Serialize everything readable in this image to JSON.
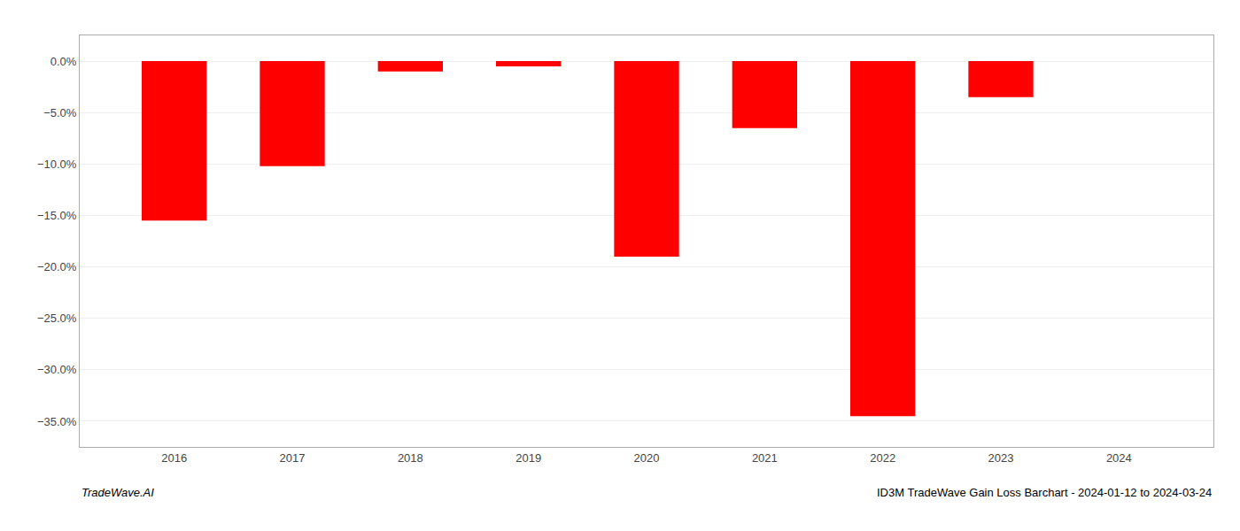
{
  "chart_data": {
    "type": "bar",
    "x": [
      2016,
      2017,
      2018,
      2019,
      2020,
      2021,
      2022,
      2023,
      2024
    ],
    "values": [
      -15.5,
      -10.2,
      -1.0,
      -0.5,
      -19.0,
      -6.5,
      -34.5,
      -3.5,
      0.0
    ],
    "color": "#FF0000",
    "xlim": [
      2015.2,
      2024.8
    ],
    "xticks": [
      2016,
      2017,
      2018,
      2019,
      2020,
      2021,
      2022,
      2023,
      2024
    ],
    "ylim": [
      -37.5,
      2.5
    ],
    "yticks": [
      {
        "value": 0.0,
        "label": "0.0%"
      },
      {
        "value": -5.0,
        "label": "−5.0%"
      },
      {
        "value": -10.0,
        "label": "−10.0%"
      },
      {
        "value": -15.0,
        "label": "−15.0%"
      },
      {
        "value": -20.0,
        "label": "−20.0%"
      },
      {
        "value": -25.0,
        "label": "−25.0%"
      },
      {
        "value": -30.0,
        "label": "−30.0%"
      },
      {
        "value": -35.0,
        "label": "−35.0%"
      }
    ],
    "grid": true,
    "annotations": [
      "TradeWave.AI",
      "ID3M TradeWave Gain Loss Barchart - 2024-01-12 to 2024-03-24"
    ]
  }
}
